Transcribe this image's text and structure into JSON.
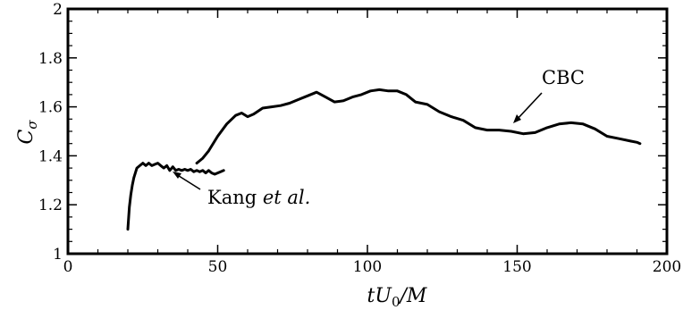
{
  "chart_data": {
    "type": "line",
    "title": "",
    "xlabel": "tU₀/M",
    "ylabel": "Cσ",
    "xlim": [
      0,
      200
    ],
    "ylim": [
      1,
      2
    ],
    "x_ticks": [
      "0",
      "50",
      "100",
      "150",
      "200"
    ],
    "y_ticks": [
      "1",
      "1.2",
      "1.4",
      "1.6",
      "1.8",
      "2"
    ],
    "grid": false,
    "annotations": [
      {
        "text": "CBC",
        "target_series": "CBC"
      },
      {
        "text": "Kang et al.",
        "target_series": "Kang et al."
      }
    ],
    "series": [
      {
        "name": "Kang et al.",
        "x": [
          20,
          20.5,
          21,
          21.5,
          22,
          22.5,
          23,
          24,
          25,
          26,
          27,
          28,
          29,
          30,
          31,
          32,
          33,
          34,
          35,
          36,
          37,
          38,
          39,
          40,
          41,
          42,
          43,
          44,
          45,
          46,
          47,
          48,
          49,
          50,
          51,
          52
        ],
        "y": [
          1.1,
          1.19,
          1.24,
          1.28,
          1.31,
          1.33,
          1.35,
          1.36,
          1.37,
          1.36,
          1.37,
          1.36,
          1.365,
          1.37,
          1.36,
          1.35,
          1.36,
          1.34,
          1.355,
          1.34,
          1.345,
          1.34,
          1.345,
          1.34,
          1.345,
          1.335,
          1.34,
          1.335,
          1.34,
          1.33,
          1.34,
          1.33,
          1.325,
          1.33,
          1.335,
          1.34
        ]
      },
      {
        "name": "CBC",
        "x": [
          43,
          45,
          47,
          50,
          53,
          56,
          58,
          60,
          62,
          65,
          68,
          71,
          74,
          77,
          80,
          83,
          86,
          89,
          92,
          95,
          98,
          101,
          104,
          107,
          110,
          113,
          116,
          120,
          124,
          128,
          132,
          136,
          140,
          144,
          148,
          152,
          156,
          160,
          164,
          168,
          172,
          176,
          180,
          184,
          188,
          190,
          191
        ],
        "y": [
          1.37,
          1.39,
          1.42,
          1.48,
          1.53,
          1.565,
          1.575,
          1.56,
          1.57,
          1.595,
          1.6,
          1.605,
          1.615,
          1.63,
          1.645,
          1.66,
          1.64,
          1.62,
          1.625,
          1.64,
          1.65,
          1.665,
          1.67,
          1.665,
          1.665,
          1.65,
          1.62,
          1.61,
          1.58,
          1.56,
          1.545,
          1.515,
          1.505,
          1.505,
          1.5,
          1.49,
          1.495,
          1.515,
          1.53,
          1.535,
          1.53,
          1.51,
          1.48,
          1.47,
          1.46,
          1.455,
          1.45
        ]
      }
    ]
  }
}
